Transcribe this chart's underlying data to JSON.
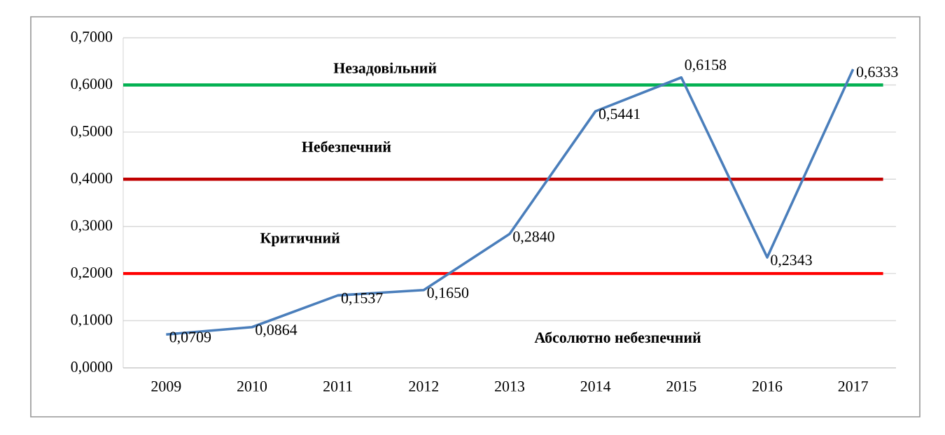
{
  "chart_data": {
    "type": "line",
    "categories": [
      "2009",
      "2010",
      "2011",
      "2012",
      "2013",
      "2014",
      "2015",
      "2016",
      "2017"
    ],
    "values": [
      0.0709,
      0.0864,
      0.1537,
      0.165,
      0.284,
      0.5441,
      0.6158,
      0.2343,
      0.6333
    ],
    "value_labels": [
      "0,0709",
      "0,0864",
      "0,1537",
      "0,1650",
      "0,2840",
      "0,5441",
      "0,6158",
      "0,2343",
      "0,6333"
    ],
    "color": "#4a7ebb",
    "ylim": [
      0,
      0.7
    ],
    "yticks": [
      {
        "value": 0,
        "label": "0,0000"
      },
      {
        "value": 0.1,
        "label": "0,1000"
      },
      {
        "value": 0.2,
        "label": "0,2000"
      },
      {
        "value": 0.3,
        "label": "0,3000"
      },
      {
        "value": 0.4,
        "label": "0,4000"
      },
      {
        "value": 0.5,
        "label": "0,5000"
      },
      {
        "value": 0.6,
        "label": "0,6000"
      },
      {
        "value": 0.7,
        "label": "0,7000"
      }
    ],
    "grid": "y",
    "ref_lines": [
      {
        "axis": "y",
        "value": 0.6,
        "label": "Незадовільний",
        "color": "#00b050"
      },
      {
        "axis": "y",
        "value": 0.4,
        "label": "Небезпечний",
        "color": "#c00000"
      },
      {
        "axis": "y",
        "value": 0.2,
        "label": "Критичний",
        "color": "#ff0000"
      }
    ],
    "annotations": [
      "Абсолютно небезпечний"
    ]
  }
}
